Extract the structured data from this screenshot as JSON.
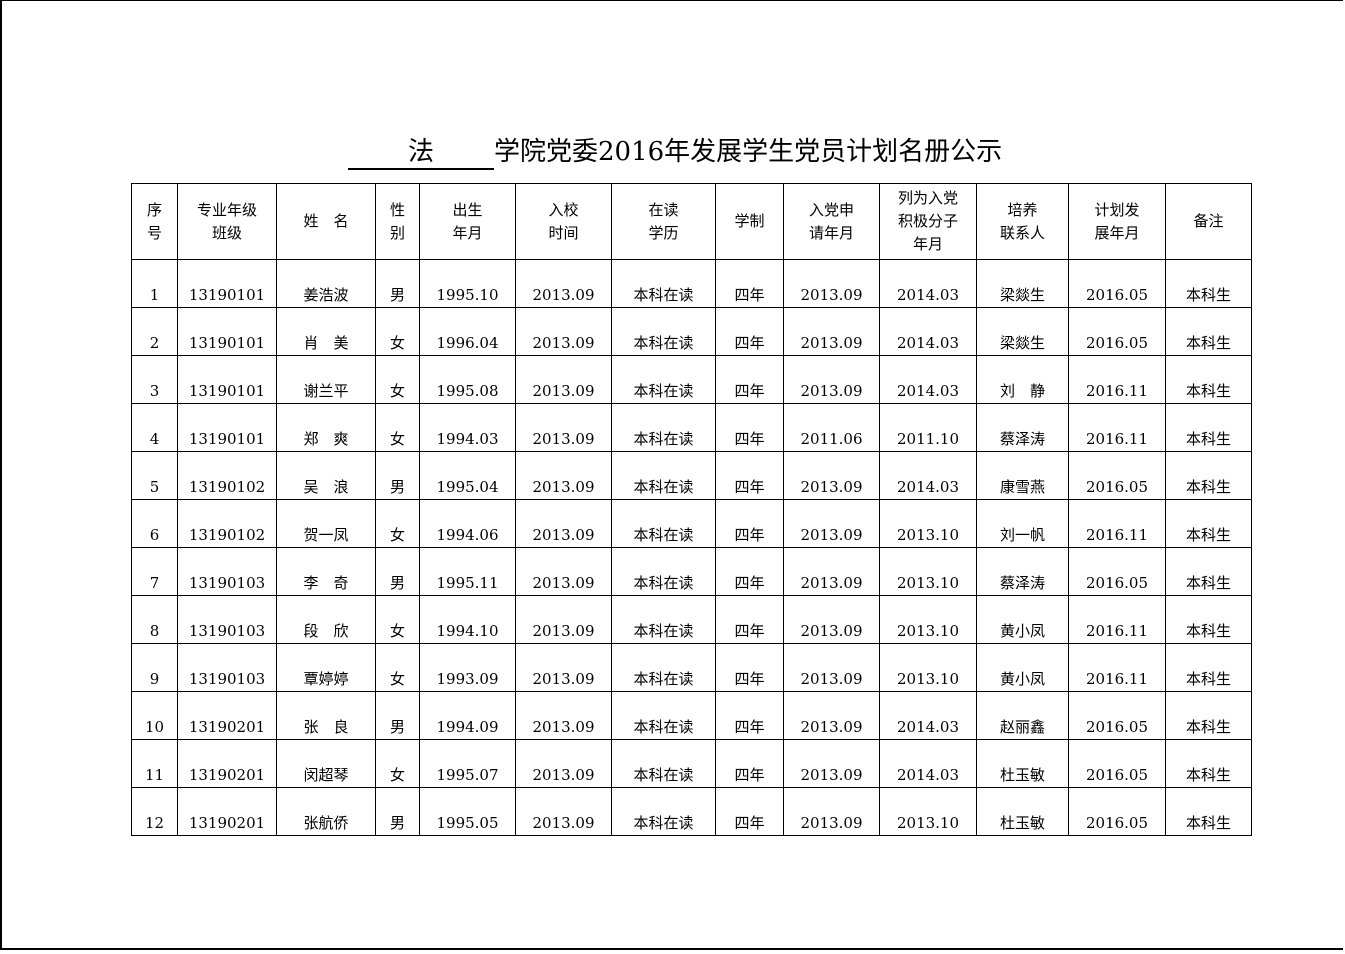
{
  "title": {
    "college": "法",
    "rest": "学院党委2016年发展学生党员计划名册公示"
  },
  "headers": [
    "序\n号",
    "专业年级\n班级",
    "姓　名",
    "性\n别",
    "出生\n年月",
    "入校\n时间",
    "在读\n学历",
    "学制",
    "入党申\n请年月",
    "列为入党\n积极分子\n年月",
    "培养\n联系人",
    "计划发\n展年月",
    "备注"
  ],
  "rows": [
    [
      "1",
      "13190101",
      "姜浩波",
      "男",
      "1995.10",
      "2013.09",
      "本科在读",
      "四年",
      "2013.09",
      "2014.03",
      "梁燚生",
      "2016.05",
      "本科生"
    ],
    [
      "2",
      "13190101",
      "肖　美",
      "女",
      "1996.04",
      "2013.09",
      "本科在读",
      "四年",
      "2013.09",
      "2014.03",
      "梁燚生",
      "2016.05",
      "本科生"
    ],
    [
      "3",
      "13190101",
      "谢兰平",
      "女",
      "1995.08",
      "2013.09",
      "本科在读",
      "四年",
      "2013.09",
      "2014.03",
      "刘　静",
      "2016.11",
      "本科生"
    ],
    [
      "4",
      "13190101",
      "郑　爽",
      "女",
      "1994.03",
      "2013.09",
      "本科在读",
      "四年",
      "2011.06",
      "2011.10",
      "蔡泽涛",
      "2016.11",
      "本科生"
    ],
    [
      "5",
      "13190102",
      "吴　浪",
      "男",
      "1995.04",
      "2013.09",
      "本科在读",
      "四年",
      "2013.09",
      "2014.03",
      "康雪燕",
      "2016.05",
      "本科生"
    ],
    [
      "6",
      "13190102",
      "贺一凤",
      "女",
      "1994.06",
      "2013.09",
      "本科在读",
      "四年",
      "2013.09",
      "2013.10",
      "刘一帆",
      "2016.11",
      "本科生"
    ],
    [
      "7",
      "13190103",
      "李　奇",
      "男",
      "1995.11",
      "2013.09",
      "本科在读",
      "四年",
      "2013.09",
      "2013.10",
      "蔡泽涛",
      "2016.05",
      "本科生"
    ],
    [
      "8",
      "13190103",
      "段　欣",
      "女",
      "1994.10",
      "2013.09",
      "本科在读",
      "四年",
      "2013.09",
      "2013.10",
      "黄小凤",
      "2016.11",
      "本科生"
    ],
    [
      "9",
      "13190103",
      "覃婷婷",
      "女",
      "1993.09",
      "2013.09",
      "本科在读",
      "四年",
      "2013.09",
      "2013.10",
      "黄小凤",
      "2016.11",
      "本科生"
    ],
    [
      "10",
      "13190201",
      "张　良",
      "男",
      "1994.09",
      "2013.09",
      "本科在读",
      "四年",
      "2013.09",
      "2014.03",
      "赵丽鑫",
      "2016.05",
      "本科生"
    ],
    [
      "11",
      "13190201",
      "闵超琴",
      "女",
      "1995.07",
      "2013.09",
      "本科在读",
      "四年",
      "2013.09",
      "2014.03",
      "杜玉敏",
      "2016.05",
      "本科生"
    ],
    [
      "12",
      "13190201",
      "张航侨",
      "男",
      "1995.05",
      "2013.09",
      "本科在读",
      "四年",
      "2013.09",
      "2013.10",
      "杜玉敏",
      "2016.05",
      "本科生"
    ]
  ]
}
